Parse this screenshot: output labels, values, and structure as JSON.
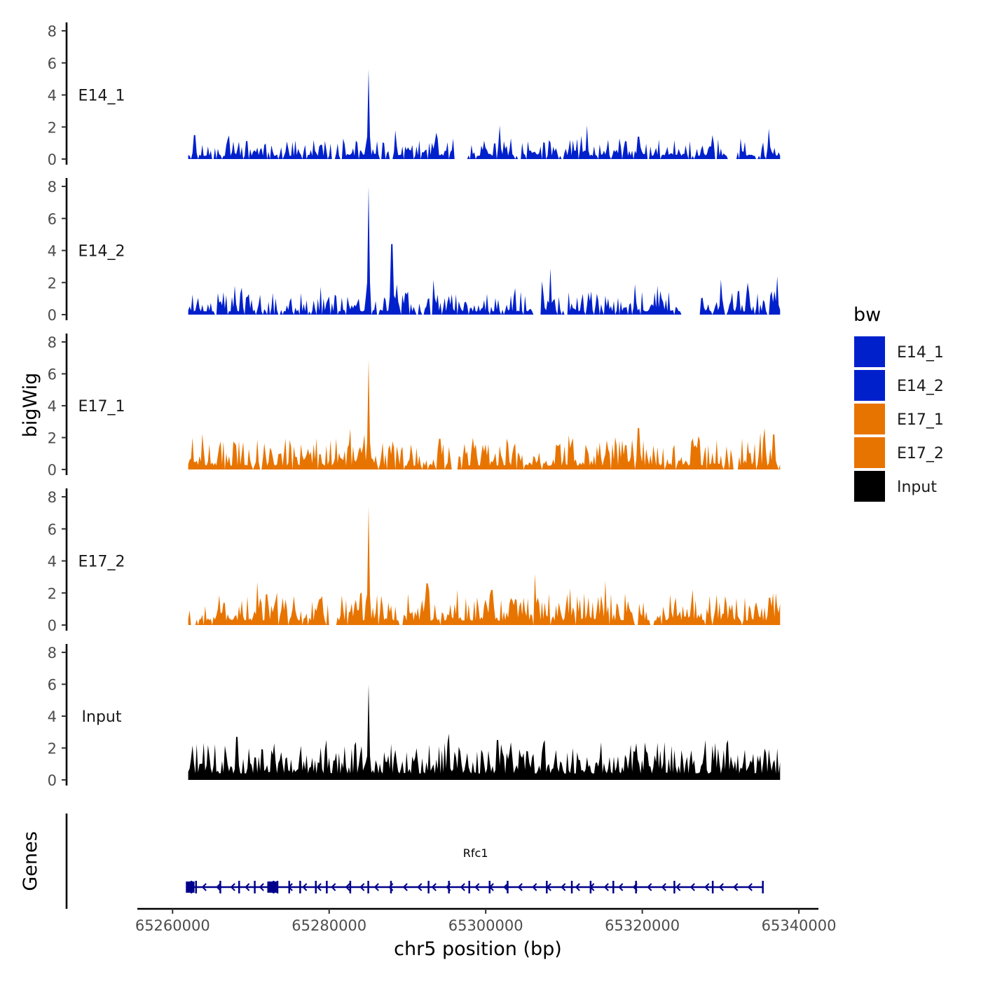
{
  "chart_data": {
    "type": "area",
    "ylabel": "bigWig",
    "xlabel": "chr5 position (bp)",
    "chromosome": "chr5",
    "xlim": [
      65255500,
      65342500
    ],
    "data_range": [
      65262000,
      65337600
    ],
    "ylim": [
      0,
      8
    ],
    "y_ticks": [
      0,
      2,
      4,
      6,
      8
    ],
    "x_ticks": [
      65260000,
      65280000,
      65300000,
      65320000,
      65340000
    ],
    "x_tick_labels": [
      "65260000",
      "65280000",
      "65300000",
      "65320000",
      "65340000"
    ],
    "grid": false,
    "legend": {
      "title": "bw",
      "position": "right",
      "entries": [
        {
          "label": "E14_1",
          "color": "#0020cc"
        },
        {
          "label": "E14_2",
          "color": "#0020cc"
        },
        {
          "label": "E17_1",
          "color": "#e87400"
        },
        {
          "label": "E17_2",
          "color": "#e87400"
        },
        {
          "label": "Input",
          "color": "#000000"
        }
      ]
    },
    "series": [
      {
        "name": "E14_1",
        "color": "#0020cc",
        "baseline": 0.5,
        "noise": 0.5,
        "gaps": 0.18,
        "seed": 11,
        "peaks": [
          [
            65285000,
            5.6
          ],
          [
            65262800,
            1.5
          ],
          [
            65301800,
            2.1
          ],
          [
            65313000,
            2.1
          ],
          [
            65329000,
            1.5
          ],
          [
            65336200,
            1.9
          ],
          [
            65288500,
            1.8
          ],
          [
            65319500,
            1.4
          ]
        ],
        "empty": [
          [
            65280300,
            65280800
          ],
          [
            65296000,
            65297700
          ],
          [
            65304000,
            65304500
          ],
          [
            65331000,
            65332000
          ]
        ]
      },
      {
        "name": "E14_2",
        "color": "#0020cc",
        "baseline": 0.5,
        "noise": 0.6,
        "gaps": 0.14,
        "seed": 23,
        "peaks": [
          [
            65285000,
            8.1
          ],
          [
            65288000,
            4.4
          ],
          [
            65308200,
            2.9
          ],
          [
            65268000,
            1.8
          ],
          [
            65337200,
            2.4
          ],
          [
            65330000,
            2.2
          ],
          [
            65319000,
            1.9
          ],
          [
            65333500,
            2.0
          ],
          [
            65322000,
            1.8
          ]
        ],
        "empty": [
          [
            65306000,
            65307000
          ],
          [
            65310000,
            65310500
          ],
          [
            65325000,
            65327500
          ]
        ]
      },
      {
        "name": "E17_1",
        "color": "#e87400",
        "baseline": 0.6,
        "noise": 0.8,
        "gaps": 0.08,
        "seed": 37,
        "peaks": [
          [
            65285000,
            6.9
          ],
          [
            65284500,
            2.2
          ],
          [
            65319500,
            2.6
          ],
          [
            65327200,
            2.1
          ],
          [
            65262500,
            2.0
          ],
          [
            65336800,
            2.2
          ],
          [
            65270800,
            1.9
          ]
        ],
        "empty": [
          [
            65295500,
            65296500
          ],
          [
            65331500,
            65332200
          ]
        ]
      },
      {
        "name": "E17_2",
        "color": "#e87400",
        "baseline": 0.7,
        "noise": 0.8,
        "gaps": 0.06,
        "seed": 53,
        "peaks": [
          [
            65285000,
            7.4
          ],
          [
            65270800,
            2.7
          ],
          [
            65292500,
            2.6
          ],
          [
            65310800,
            2.3
          ],
          [
            65266500,
            1.4
          ],
          [
            65337000,
            2.0
          ],
          [
            65323500,
            1.9
          ],
          [
            65300800,
            2.2
          ]
        ],
        "empty": [
          [
            65262300,
            65263000
          ],
          [
            65280000,
            65281000
          ],
          [
            65319000,
            65319500
          ],
          [
            65321000,
            65321500
          ]
        ]
      },
      {
        "name": "Input",
        "color": "#000000",
        "baseline": 1.0,
        "noise": 0.9,
        "gaps": 0.0,
        "seed": 71,
        "peaks": [
          [
            65285000,
            6.0
          ],
          [
            65295300,
            2.9
          ],
          [
            65268200,
            2.7
          ],
          [
            65301500,
            2.5
          ],
          [
            65331000,
            2.5
          ],
          [
            65319300,
            2.3
          ],
          [
            65328000,
            2.5
          ],
          [
            65273000,
            2.3
          ]
        ],
        "empty": []
      }
    ],
    "genes": {
      "title": "Genes",
      "color": "#00008b",
      "items": [
        {
          "name": "Rfc1",
          "start": 65262000,
          "end": 65335400,
          "strand": "-",
          "exons": [
            65262400,
            65263000,
            65266100,
            65268500,
            65270500,
            65272900,
            65273400,
            65274900,
            65276300,
            65278300,
            65279700,
            65282700,
            65285000,
            65287900,
            65292700,
            65295300,
            65297900,
            65300500,
            65302800,
            65307800,
            65311000,
            65313400,
            65316300,
            65319200,
            65324100,
            65329000,
            65335400
          ],
          "utr_boxes": [
            [
              65261700,
              65262800
            ],
            [
              65272100,
              65273300
            ]
          ]
        }
      ]
    }
  }
}
